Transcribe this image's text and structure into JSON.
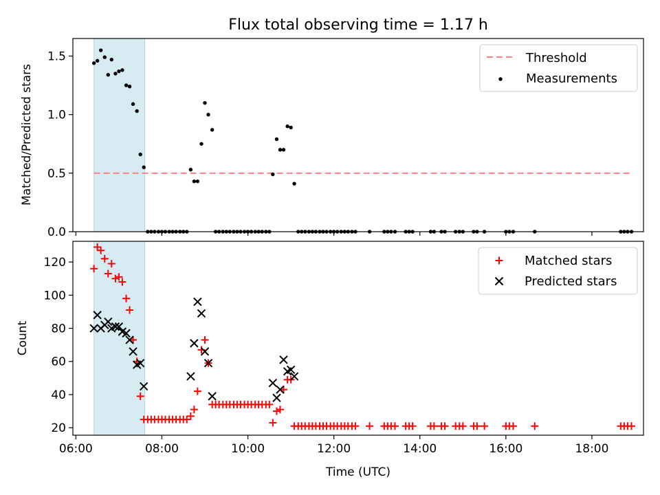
{
  "title": "Flux total observing time = 1.17 h",
  "xlabel": "Time (UTC)",
  "x_ticks": [
    "06:00",
    "08:00",
    "10:00",
    "12:00",
    "14:00",
    "16:00",
    "18:00"
  ],
  "colors": {
    "shade": "#add8e6",
    "threshold": "#ff8080",
    "measurement": "#000000",
    "matched": "#ff0000",
    "predicted": "#000000"
  },
  "chart_data": [
    {
      "type": "scatter",
      "panel": "top",
      "ylabel": "Matched/Predicted stars",
      "xlim": [
        5.93,
        19.2
      ],
      "ylim": [
        0,
        1.65
      ],
      "y_ticks": [
        "0.0",
        "0.5",
        "1.0",
        "1.5"
      ],
      "grid": false,
      "legend_position": "top-right",
      "shaded_x_range": [
        6.42,
        7.6
      ],
      "threshold": {
        "name": "Threshold",
        "x_range": [
          6.42,
          18.9
        ],
        "y": 0.5
      },
      "series": [
        {
          "name": "Measurements",
          "marker": "dot",
          "x": [
            6.42,
            6.5,
            6.58,
            6.67,
            6.75,
            6.83,
            6.92,
            7.0,
            7.08,
            7.17,
            7.25,
            7.33,
            7.42,
            7.5,
            7.58,
            7.67,
            7.75,
            7.83,
            7.92,
            8.0,
            8.08,
            8.17,
            8.25,
            8.33,
            8.42,
            8.5,
            8.58,
            8.67,
            8.75,
            8.83,
            8.92,
            9.0,
            9.08,
            9.17,
            9.25,
            9.33,
            9.42,
            9.5,
            9.58,
            9.67,
            9.75,
            9.83,
            9.92,
            10.0,
            10.08,
            10.17,
            10.25,
            10.33,
            10.42,
            10.5,
            10.58,
            10.67,
            10.75,
            10.83,
            10.92,
            11.0,
            11.08,
            11.17,
            11.25,
            11.33,
            11.42,
            11.5,
            11.58,
            11.67,
            11.75,
            11.83,
            11.92,
            12.0,
            12.08,
            12.17,
            12.25,
            12.33,
            12.42,
            12.5,
            12.83,
            13.17,
            13.25,
            13.33,
            13.42,
            13.67,
            13.75,
            13.83,
            14.25,
            14.33,
            14.5,
            14.58,
            14.83,
            14.92,
            15.0,
            15.25,
            15.33,
            15.5,
            16.0,
            16.08,
            16.17,
            16.67,
            18.67,
            18.75,
            18.83,
            18.92
          ],
          "y": [
            1.44,
            1.46,
            1.55,
            1.49,
            1.34,
            1.47,
            1.35,
            1.37,
            1.38,
            1.25,
            1.24,
            1.09,
            1.03,
            0.66,
            0.55,
            0.0,
            0.0,
            0.0,
            0.0,
            0.0,
            0.0,
            0.0,
            0.0,
            0.0,
            0.0,
            0.0,
            0.0,
            0.53,
            0.43,
            0.43,
            0.75,
            1.1,
            1.0,
            0.87,
            0.0,
            0.0,
            0.0,
            0.0,
            0.0,
            0.0,
            0.0,
            0.0,
            0.0,
            0.0,
            0.0,
            0.0,
            0.0,
            0.0,
            0.0,
            0.0,
            0.49,
            0.79,
            0.7,
            0.7,
            0.9,
            0.89,
            0.41,
            0.0,
            0.0,
            0.0,
            0.0,
            0.0,
            0.0,
            0.0,
            0.0,
            0.0,
            0.0,
            0.0,
            0.0,
            0.0,
            0.0,
            0.0,
            0.0,
            0.0,
            0.0,
            0.0,
            0.0,
            0.0,
            0.0,
            0.0,
            0.0,
            0.0,
            0.0,
            0.0,
            0.0,
            0.0,
            0.0,
            0.0,
            0.0,
            0.0,
            0.0,
            0.0,
            0.0,
            0.0,
            0.0,
            0.0,
            0.0,
            0.0,
            0.0,
            0.0
          ]
        }
      ]
    },
    {
      "type": "scatter",
      "panel": "bottom",
      "ylabel": "Count",
      "xlim": [
        5.93,
        19.2
      ],
      "ylim": [
        15.5,
        132.5
      ],
      "y_ticks": [
        "20",
        "40",
        "60",
        "80",
        "100",
        "120"
      ],
      "grid": false,
      "legend_position": "top-right",
      "shaded_x_range": [
        6.42,
        7.6
      ],
      "series": [
        {
          "name": "Matched stars",
          "marker": "plus",
          "x": [
            6.42,
            6.5,
            6.58,
            6.67,
            6.75,
            6.83,
            6.92,
            7.0,
            7.08,
            7.17,
            7.25,
            7.33,
            7.42,
            7.5,
            7.58,
            7.67,
            7.75,
            7.83,
            7.92,
            8.0,
            8.08,
            8.17,
            8.25,
            8.33,
            8.42,
            8.5,
            8.58,
            8.67,
            8.75,
            8.83,
            8.92,
            9.0,
            9.08,
            9.17,
            9.25,
            9.33,
            9.42,
            9.5,
            9.58,
            9.67,
            9.75,
            9.83,
            9.92,
            10.0,
            10.08,
            10.17,
            10.25,
            10.33,
            10.42,
            10.5,
            10.58,
            10.67,
            10.75,
            10.83,
            10.92,
            11.0,
            11.08,
            11.17,
            11.25,
            11.33,
            11.42,
            11.5,
            11.58,
            11.67,
            11.75,
            11.83,
            11.92,
            12.0,
            12.08,
            12.17,
            12.25,
            12.33,
            12.42,
            12.5,
            12.83,
            13.17,
            13.25,
            13.33,
            13.42,
            13.67,
            13.75,
            13.83,
            14.25,
            14.33,
            14.5,
            14.58,
            14.83,
            14.92,
            15.0,
            15.25,
            15.33,
            15.5,
            16.0,
            16.08,
            16.17,
            16.67,
            18.67,
            18.75,
            18.83,
            18.92
          ],
          "y": [
            116,
            129,
            127,
            122,
            113,
            119,
            110,
            111,
            108,
            98,
            91,
            73,
            60,
            39,
            25,
            25,
            25,
            25,
            25,
            25,
            25,
            25,
            25,
            25,
            25,
            25,
            25,
            27,
            31,
            42,
            67,
            73,
            59,
            34,
            34,
            34,
            34,
            34,
            34,
            34,
            34,
            34,
            34,
            34,
            34,
            34,
            34,
            34,
            34,
            34,
            23,
            30,
            31,
            43,
            49,
            49,
            21,
            21,
            21,
            21,
            21,
            21,
            21,
            21,
            21,
            21,
            21,
            21,
            21,
            21,
            21,
            21,
            21,
            21,
            21,
            21,
            21,
            21,
            21,
            21,
            21,
            21,
            21,
            21,
            21,
            21,
            21,
            21,
            21,
            21,
            21,
            21,
            21,
            21,
            21,
            21,
            21,
            21,
            21,
            21
          ]
        },
        {
          "name": "Predicted stars",
          "marker": "x",
          "x": [
            6.42,
            6.5,
            6.58,
            6.67,
            6.75,
            6.83,
            6.92,
            7.0,
            7.08,
            7.17,
            7.25,
            7.33,
            7.42,
            7.5,
            7.58,
            8.67,
            8.75,
            8.83,
            8.92,
            9.0,
            9.08,
            9.17,
            10.58,
            10.67,
            10.75,
            10.83,
            10.92,
            11.0,
            11.08
          ],
          "y": [
            80,
            88,
            80,
            82,
            84,
            80,
            81,
            81,
            78,
            77,
            73,
            66,
            58,
            59,
            45,
            51,
            71,
            96,
            89,
            66,
            59,
            39,
            47,
            38,
            43,
            61,
            54,
            55,
            51
          ]
        }
      ]
    }
  ]
}
